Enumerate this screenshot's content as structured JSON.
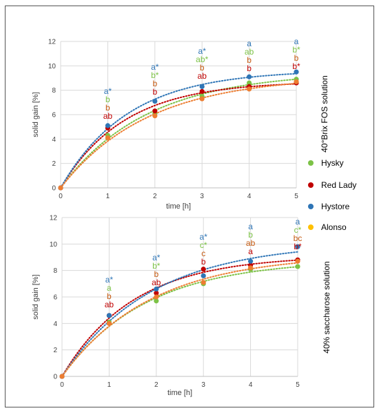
{
  "colors": {
    "Hysky": "#7cc246",
    "Red Lady": "#c00000",
    "Hystore": "#2e75b6",
    "Alonso": "#ffc000",
    "alonso_text": "#c55a11",
    "alonso_point": "#ed7d31",
    "grid": "#d9d9d9",
    "axis": "#bfbfbf"
  },
  "legend": {
    "placement": "right-middle",
    "entries": [
      "Hysky",
      "Red Lady",
      "Hystore",
      "Alonso"
    ]
  },
  "chart_data": [
    {
      "type": "scatter",
      "side_title": "40°Brix FOS solution",
      "xlabel": "time [h]",
      "ylabel": "solid gain [%]",
      "xlim": [
        0,
        5
      ],
      "ylim": [
        0,
        12
      ],
      "xticks": [
        0,
        1,
        2,
        3,
        4,
        5
      ],
      "yticks": [
        0,
        2,
        4,
        6,
        8,
        10,
        12
      ],
      "grid": true,
      "trendline": "dotted",
      "series": [
        {
          "name": "Hysky",
          "x": [
            0,
            1,
            2,
            3,
            4,
            5
          ],
          "y": [
            0,
            4.3,
            6.1,
            7.5,
            8.6,
            8.9
          ]
        },
        {
          "name": "Red Lady",
          "x": [
            0,
            1,
            2,
            3,
            4,
            5
          ],
          "y": [
            0,
            4.9,
            6.3,
            7.9,
            8.3,
            8.6
          ]
        },
        {
          "name": "Hystore",
          "x": [
            0,
            1,
            2,
            3,
            4,
            5
          ],
          "y": [
            0,
            5.1,
            7.1,
            8.3,
            9.1,
            9.5
          ]
        },
        {
          "name": "Alonso",
          "x": [
            0,
            1,
            2,
            3,
            4,
            5
          ],
          "y": [
            0,
            4.1,
            5.9,
            7.3,
            8.1,
            8.7
          ]
        }
      ],
      "significance": [
        {
          "x": 1,
          "labels": [
            {
              "s": "Hystore",
              "t": "a*"
            },
            {
              "s": "Hysky",
              "t": "b"
            },
            {
              "s": "Alonso",
              "t": "b"
            },
            {
              "s": "Red Lady",
              "t": "ab"
            }
          ]
        },
        {
          "x": 2,
          "labels": [
            {
              "s": "Hystore",
              "t": "a*"
            },
            {
              "s": "Hysky",
              "t": "b*"
            },
            {
              "s": "Alonso",
              "t": "b"
            },
            {
              "s": "Red Lady",
              "t": "b"
            }
          ]
        },
        {
          "x": 3,
          "labels": [
            {
              "s": "Hystore",
              "t": "a*"
            },
            {
              "s": "Hysky",
              "t": "ab*"
            },
            {
              "s": "Alonso",
              "t": "b"
            },
            {
              "s": "Red Lady",
              "t": "ab"
            }
          ]
        },
        {
          "x": 4,
          "labels": [
            {
              "s": "Hystore",
              "t": "a"
            },
            {
              "s": "Hysky",
              "t": "ab"
            },
            {
              "s": "Alonso",
              "t": "b"
            },
            {
              "s": "Red Lady",
              "t": "b"
            }
          ]
        },
        {
          "x": 5,
          "labels": [
            {
              "s": "Hystore",
              "t": "a"
            },
            {
              "s": "Hysky",
              "t": "b*"
            },
            {
              "s": "Alonso",
              "t": "b"
            },
            {
              "s": "Red Lady",
              "t": "b*"
            }
          ]
        }
      ]
    },
    {
      "type": "scatter",
      "side_title": "40% saccharose solution",
      "xlabel": "time [h]",
      "ylabel": "solid gain [%]",
      "xlim": [
        0,
        5
      ],
      "ylim": [
        0,
        12
      ],
      "xticks": [
        0,
        1,
        2,
        3,
        4,
        5
      ],
      "yticks": [
        0,
        2,
        4,
        6,
        8,
        10,
        12
      ],
      "grid": true,
      "trendline": "dotted",
      "series": [
        {
          "name": "Hysky",
          "x": [
            0,
            1,
            2,
            3,
            4,
            5
          ],
          "y": [
            0,
            4.1,
            5.7,
            7.0,
            8.1,
            8.3
          ]
        },
        {
          "name": "Red Lady",
          "x": [
            0,
            1,
            2,
            3,
            4,
            5
          ],
          "y": [
            0,
            4.6,
            6.3,
            8.1,
            8.4,
            8.8
          ]
        },
        {
          "name": "Hystore",
          "x": [
            0,
            1,
            2,
            3,
            4,
            5
          ],
          "y": [
            0,
            4.6,
            6.6,
            7.6,
            8.7,
            9.8
          ]
        },
        {
          "name": "Alonso",
          "x": [
            0,
            1,
            2,
            3,
            4,
            5
          ],
          "y": [
            0,
            4.0,
            6.0,
            7.1,
            8.2,
            8.7
          ]
        }
      ],
      "significance": [
        {
          "x": 1,
          "labels": [
            {
              "s": "Hystore",
              "t": "a*"
            },
            {
              "s": "Hysky",
              "t": "a"
            },
            {
              "s": "Alonso",
              "t": "b"
            },
            {
              "s": "Red Lady",
              "t": "ab"
            }
          ]
        },
        {
          "x": 2,
          "labels": [
            {
              "s": "Hystore",
              "t": "a*"
            },
            {
              "s": "Hysky",
              "t": "b*"
            },
            {
              "s": "Alonso",
              "t": "b"
            },
            {
              "s": "Red Lady",
              "t": "ab"
            }
          ]
        },
        {
          "x": 3,
          "labels": [
            {
              "s": "Hystore",
              "t": "a*"
            },
            {
              "s": "Hysky",
              "t": "c*"
            },
            {
              "s": "Alonso",
              "t": "c"
            },
            {
              "s": "Red Lady",
              "t": "b"
            }
          ]
        },
        {
          "x": 4,
          "labels": [
            {
              "s": "Hystore",
              "t": "a"
            },
            {
              "s": "Hysky",
              "t": "b"
            },
            {
              "s": "Alonso",
              "t": "ab"
            },
            {
              "s": "Red Lady",
              "t": "a"
            }
          ]
        },
        {
          "x": 5,
          "labels": [
            {
              "s": "Hystore",
              "t": "a"
            },
            {
              "s": "Hysky",
              "t": "c*"
            },
            {
              "s": "Alonso",
              "t": "bc"
            },
            {
              "s": "Red Lady",
              "t": "b*"
            }
          ]
        }
      ]
    }
  ]
}
